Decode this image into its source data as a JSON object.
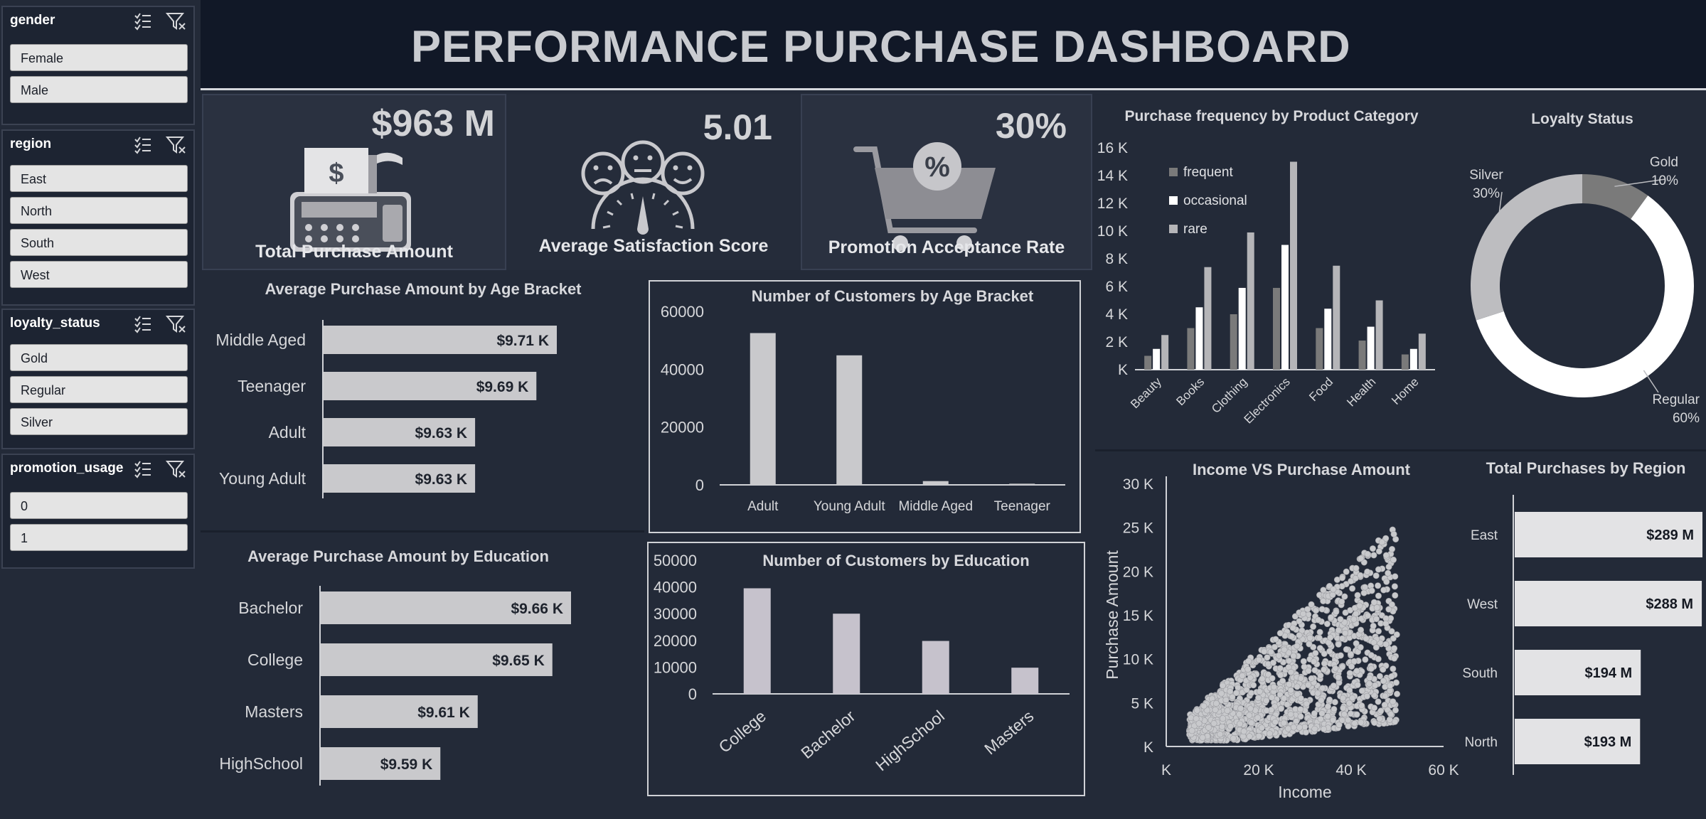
{
  "header": {
    "title": "PERFORMANCE PURCHASE DASHBOARD"
  },
  "slicers": [
    {
      "field": "gender",
      "items": [
        "Female",
        "Male"
      ]
    },
    {
      "field": "region",
      "items": [
        "East",
        "North",
        "South",
        "West"
      ]
    },
    {
      "field": "loyalty_status",
      "items": [
        "Gold",
        "Regular",
        "Silver"
      ]
    },
    {
      "field": "promotion_usage",
      "items": [
        "0",
        "1"
      ]
    }
  ],
  "kpis": {
    "total_purchase": {
      "value": "$963 M",
      "label": "Total Purchase Amount"
    },
    "satisfaction": {
      "value": "5.01",
      "label": "Average Satisfaction Score"
    },
    "promotion": {
      "value": "30%",
      "label": "Promotion Acceptance Rate"
    }
  },
  "icons": {
    "total_purchase": "cash-register-icon",
    "satisfaction": "satisfaction-gauge-icon",
    "promotion": "shopping-cart-percent-icon",
    "slicer_multiselect": "multi-select-icon",
    "slicer_clear": "clear-filter-icon"
  },
  "colors": {
    "background": "#232a38",
    "header": "#111827",
    "bar": "#c9c9cc",
    "frequent": "#7a7a7a",
    "occasional": "#ffffff",
    "rare": "#b5b5b8",
    "gold": "#7a7a7a",
    "silver": "#bdbdc0",
    "regular": "#ffffff"
  },
  "chart_data": [
    {
      "id": "avg_age",
      "type": "bar",
      "orientation": "horizontal",
      "title": "Average Purchase Amount by Age Bracket",
      "categories": [
        "Middle Aged",
        "Teenager",
        "Adult",
        "Young Adult"
      ],
      "values": [
        9.71,
        9.69,
        9.63,
        9.63
      ],
      "data_labels": [
        "$9.71 K",
        "$9.69 K",
        "$9.63 K",
        "$9.63 K"
      ]
    },
    {
      "id": "cust_age",
      "type": "bar",
      "title": "Number of Customers by Age Bracket",
      "categories": [
        "Adult",
        "Young Adult",
        "Middle Aged",
        "Teenager"
      ],
      "values": [
        52500,
        44800,
        1300,
        400
      ],
      "ylim": [
        0,
        60000
      ],
      "yticks": [
        "0",
        "20000",
        "40000",
        "60000"
      ]
    },
    {
      "id": "freq_cat",
      "type": "bar",
      "title": "Purchase frequency by Product Category",
      "categories": [
        "Beauty",
        "Books",
        "Clothing",
        "Electronics",
        "Food",
        "Health",
        "Home"
      ],
      "series": [
        {
          "name": "frequent",
          "values": [
            1000,
            3000,
            4000,
            5900,
            3000,
            2100,
            1100
          ]
        },
        {
          "name": "occasional",
          "values": [
            1500,
            4500,
            5900,
            9000,
            4400,
            3100,
            1500
          ]
        },
        {
          "name": "rare",
          "values": [
            2500,
            7400,
            9900,
            15000,
            7500,
            5000,
            2600
          ]
        }
      ],
      "ylim": [
        0,
        16000
      ],
      "yticks": [
        "K",
        "2 K",
        "4 K",
        "6 K",
        "8 K",
        "10 K",
        "12 K",
        "14 K",
        "16 K"
      ],
      "legend": "top-left"
    },
    {
      "id": "loyalty",
      "type": "pie",
      "title": "Loyalty Status",
      "labels": [
        "Gold",
        "Regular",
        "Silver"
      ],
      "values": [
        10,
        60,
        30
      ],
      "value_labels": [
        "10%",
        "60%",
        "30%"
      ]
    },
    {
      "id": "avg_edu",
      "type": "bar",
      "orientation": "horizontal",
      "title": "Average Purchase Amount by Education",
      "categories": [
        "Bachelor",
        "College",
        "Masters",
        "HighSchool"
      ],
      "values": [
        9.66,
        9.65,
        9.61,
        9.59
      ],
      "data_labels": [
        "$9.66 K",
        "$9.65 K",
        "$9.61 K",
        "$9.59 K"
      ]
    },
    {
      "id": "cust_edu",
      "type": "bar",
      "title": "Number of Customers by Education",
      "categories": [
        "College",
        "Bachelor",
        "HighSchool",
        "Masters"
      ],
      "values": [
        39500,
        30000,
        19800,
        9800
      ],
      "ylim": [
        0,
        50000
      ],
      "yticks": [
        "0",
        "10000",
        "20000",
        "30000",
        "40000",
        "50000"
      ]
    },
    {
      "id": "scatter",
      "type": "scatter",
      "title": "Income VS Purchase Amount",
      "xlabel": "Income",
      "ylabel": "Purchase Amount",
      "xlim": [
        0,
        60000
      ],
      "ylim": [
        0,
        30000
      ],
      "xticks": [
        "K",
        "20 K",
        "40 K",
        "60 K"
      ],
      "yticks": [
        "K",
        "5 K",
        "10 K",
        "15 K",
        "20 K",
        "25 K",
        "30 K"
      ],
      "x_range": [
        5000,
        50000
      ]
    },
    {
      "id": "region",
      "type": "bar",
      "orientation": "horizontal",
      "title": "Total Purchases by Region",
      "categories": [
        "East",
        "West",
        "South",
        "North"
      ],
      "values": [
        289,
        288,
        194,
        193
      ],
      "data_labels": [
        "$289 M",
        "$288 M",
        "$194 M",
        "$193 M"
      ]
    }
  ]
}
